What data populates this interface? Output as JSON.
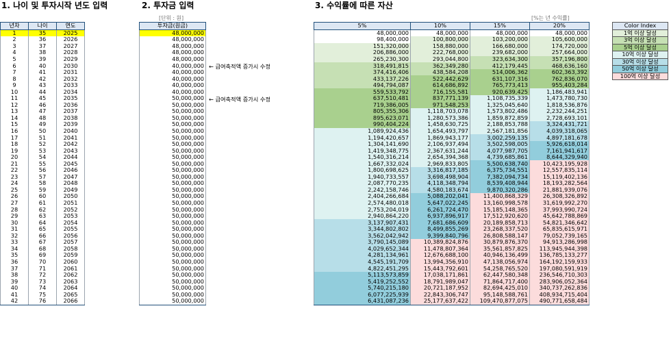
{
  "headings": {
    "h1": "1. 나이 및 투자시작 년도 입력",
    "h2": "2. 투자금 입력",
    "h3": "3. 수익률에 따른 자산",
    "unit_left": "[단위 : 원]",
    "unit_right": "[%는 년 수익률]"
  },
  "age_table": {
    "headers": [
      "년차",
      "나이",
      "연도"
    ],
    "rows": [
      [
        "1",
        "35",
        "2025"
      ],
      [
        "2",
        "36",
        "2026"
      ],
      [
        "3",
        "37",
        "2027"
      ],
      [
        "4",
        "38",
        "2028"
      ],
      [
        "5",
        "39",
        "2029"
      ],
      [
        "6",
        "40",
        "2030"
      ],
      [
        "7",
        "41",
        "2031"
      ],
      [
        "8",
        "42",
        "2032"
      ],
      [
        "9",
        "43",
        "2033"
      ],
      [
        "10",
        "44",
        "2034"
      ],
      [
        "11",
        "45",
        "2035"
      ],
      [
        "12",
        "46",
        "2036"
      ],
      [
        "13",
        "47",
        "2037"
      ],
      [
        "14",
        "48",
        "2038"
      ],
      [
        "15",
        "49",
        "2039"
      ],
      [
        "16",
        "50",
        "2040"
      ],
      [
        "17",
        "51",
        "2041"
      ],
      [
        "18",
        "52",
        "2042"
      ],
      [
        "19",
        "53",
        "2043"
      ],
      [
        "20",
        "54",
        "2044"
      ],
      [
        "21",
        "55",
        "2045"
      ],
      [
        "22",
        "56",
        "2046"
      ],
      [
        "23",
        "57",
        "2047"
      ],
      [
        "24",
        "58",
        "2048"
      ],
      [
        "25",
        "59",
        "2049"
      ],
      [
        "26",
        "60",
        "2050"
      ],
      [
        "27",
        "61",
        "2051"
      ],
      [
        "28",
        "62",
        "2052"
      ],
      [
        "29",
        "63",
        "2053"
      ],
      [
        "30",
        "64",
        "2054"
      ],
      [
        "31",
        "65",
        "2055"
      ],
      [
        "32",
        "66",
        "2056"
      ],
      [
        "33",
        "67",
        "2057"
      ],
      [
        "34",
        "68",
        "2058"
      ],
      [
        "35",
        "69",
        "2059"
      ],
      [
        "36",
        "70",
        "2060"
      ],
      [
        "37",
        "71",
        "2061"
      ],
      [
        "38",
        "72",
        "2062"
      ],
      [
        "39",
        "73",
        "2063"
      ],
      [
        "40",
        "74",
        "2064"
      ],
      [
        "41",
        "75",
        "2065"
      ],
      [
        "42",
        "76",
        "2066"
      ]
    ]
  },
  "invest_table": {
    "header": "투자금(원금)",
    "values": [
      "48,000,000",
      "48,000,000",
      "48,000,000",
      "48,000,000",
      "48,000,000",
      "40,000,000",
      "40,000,000",
      "40,000,000",
      "40,000,000",
      "40,000,000",
      "50,000,000",
      "50,000,000",
      "50,000,000",
      "50,000,000",
      "50,000,000",
      "50,000,000",
      "50,000,000",
      "50,000,000",
      "50,000,000",
      "50,000,000",
      "50,000,000",
      "50,000,000",
      "50,000,000",
      "50,000,000",
      "50,000,000",
      "50,000,000",
      "50,000,000",
      "50,000,000",
      "50,000,000",
      "50,000,000",
      "50,000,000",
      "50,000,000",
      "50,000,000",
      "50,000,000",
      "50,000,000",
      "50,000,000",
      "50,000,000",
      "50,000,000",
      "50,000,000",
      "50,000,000",
      "50,000,000",
      "50,000,000"
    ]
  },
  "notes": [
    {
      "row": 6,
      "text": "← 급여축적액 증가시 수정"
    },
    {
      "row": 11,
      "text": "← 급여축적액 증가시 수정"
    }
  ],
  "asset_table": {
    "headers": [
      "5%",
      "10%",
      "15%",
      "20%"
    ],
    "rows": [
      [
        "48,000,000",
        "48,000,000",
        "48,000,000",
        "48,000,000"
      ],
      [
        "98,400,000",
        "100,800,000",
        "103,200,000",
        "105,600,000"
      ],
      [
        "151,320,000",
        "158,880,000",
        "166,680,000",
        "174,720,000"
      ],
      [
        "206,886,000",
        "222,768,000",
        "239,682,000",
        "257,664,000"
      ],
      [
        "265,230,300",
        "293,044,800",
        "323,634,300",
        "357,196,800"
      ],
      [
        "318,491,815",
        "362,349,280",
        "412,179,445",
        "468,636,160"
      ],
      [
        "374,416,406",
        "438,584,208",
        "514,006,362",
        "602,363,392"
      ],
      [
        "433,137,226",
        "522,442,629",
        "631,107,316",
        "762,836,070"
      ],
      [
        "494,794,087",
        "614,686,892",
        "765,773,413",
        "955,403,284"
      ],
      [
        "559,533,792",
        "716,155,581",
        "920,639,425",
        "1,186,483,941"
      ],
      [
        "637,510,481",
        "837,771,139",
        "1,108,735,339",
        "1,473,780,730"
      ],
      [
        "719,386,005",
        "971,548,253",
        "1,325,045,640",
        "1,818,536,876"
      ],
      [
        "805,355,306",
        "1,118,703,078",
        "1,573,802,486",
        "2,232,244,251"
      ],
      [
        "895,623,071",
        "1,280,573,386",
        "1,859,872,859",
        "2,728,693,101"
      ],
      [
        "990,404,224",
        "1,458,630,725",
        "2,188,853,788",
        "3,324,431,721"
      ],
      [
        "1,089,924,436",
        "1,654,493,797",
        "2,567,181,856",
        "4,039,318,065"
      ],
      [
        "1,194,420,657",
        "1,869,943,177",
        "3,002,259,135",
        "4,897,181,678"
      ],
      [
        "1,304,141,690",
        "2,106,937,494",
        "3,502,598,005",
        "5,926,618,014"
      ],
      [
        "1,419,348,775",
        "2,367,631,244",
        "4,077,987,705",
        "7,161,941,617"
      ],
      [
        "1,540,316,214",
        "2,654,394,368",
        "4,739,685,861",
        "8,644,329,940"
      ],
      [
        "1,667,332,024",
        "2,969,833,805",
        "5,500,638,740",
        "10,423,195,928"
      ],
      [
        "1,800,698,625",
        "3,316,817,185",
        "6,375,734,551",
        "12,557,835,114"
      ],
      [
        "1,940,733,557",
        "3,698,498,904",
        "7,382,094,734",
        "15,119,402,136"
      ],
      [
        "2,087,770,235",
        "4,118,348,794",
        "8,539,408,944",
        "18,193,282,564"
      ],
      [
        "2,242,158,746",
        "4,580,183,674",
        "9,870,320,286",
        "21,881,939,076"
      ],
      [
        "2,404,266,684",
        "5,088,202,041",
        "11,400,868,329",
        "26,308,326,892"
      ],
      [
        "2,574,480,018",
        "5,647,022,245",
        "13,160,998,578",
        "31,619,992,270"
      ],
      [
        "2,753,204,019",
        "6,261,724,470",
        "15,185,148,365",
        "37,993,990,724"
      ],
      [
        "2,940,864,220",
        "6,937,896,917",
        "17,512,920,620",
        "45,642,788,869"
      ],
      [
        "3,137,907,431",
        "7,681,686,609",
        "20,189,858,713",
        "54,821,346,642"
      ],
      [
        "3,344,802,802",
        "8,499,855,269",
        "23,268,337,520",
        "65,835,615,971"
      ],
      [
        "3,562,042,942",
        "9,399,840,796",
        "26,808,588,147",
        "79,052,739,165"
      ],
      [
        "3,790,145,089",
        "10,389,824,876",
        "30,879,876,370",
        "94,913,286,998"
      ],
      [
        "4,029,652,344",
        "11,478,807,364",
        "35,561,857,825",
        "113,945,944,398"
      ],
      [
        "4,281,134,961",
        "12,676,688,100",
        "40,946,136,499",
        "136,785,133,277"
      ],
      [
        "4,545,191,709",
        "13,994,356,910",
        "47,138,056,974",
        "164,192,159,933"
      ],
      [
        "4,822,451,295",
        "15,443,792,601",
        "54,258,765,520",
        "197,080,591,919"
      ],
      [
        "5,113,573,859",
        "17,038,171,861",
        "62,447,580,348",
        "236,546,710,303"
      ],
      [
        "5,419,252,552",
        "18,791,989,047",
        "71,864,717,400",
        "283,906,052,364"
      ],
      [
        "5,740,215,180",
        "20,721,187,952",
        "82,694,425,010",
        "340,737,262,836"
      ],
      [
        "6,077,225,939",
        "22,843,306,747",
        "95,148,588,761",
        "408,934,715,404"
      ],
      [
        "6,431,087,236",
        "25,177,637,422",
        "109,470,877,075",
        "490,771,658,484"
      ]
    ]
  },
  "legend": {
    "header": "Color Index",
    "items": [
      "1억 이상 달성",
      "3억 이상 달성",
      "5억 이상 달성",
      "10억 이상 달성",
      "30억 이상 달성",
      "50억 이상 달성",
      "100억 이상 달성"
    ],
    "colors": [
      "#e2efda",
      "#c6e0b4",
      "#a9d08e",
      "#def2f1",
      "#b7dee8",
      "#92cddc",
      "#fcdcdc"
    ]
  }
}
